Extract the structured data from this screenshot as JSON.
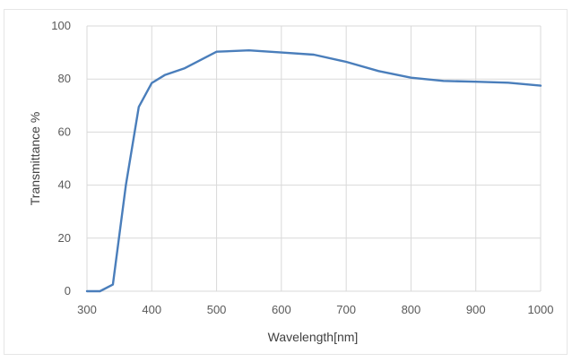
{
  "chart_data": {
    "type": "line",
    "title": "",
    "xlabel": "Wavelength[nm]",
    "ylabel": "Transmittance %",
    "xlim": [
      300,
      1000
    ],
    "ylim": [
      0,
      100
    ],
    "x_ticks": [
      300,
      400,
      500,
      600,
      700,
      800,
      900,
      1000
    ],
    "y_ticks": [
      0,
      20,
      40,
      60,
      80,
      100
    ],
    "grid": "both",
    "legend": "none",
    "series": [
      {
        "color": "#4a7ebb",
        "points": [
          [
            300,
            0
          ],
          [
            320,
            0
          ],
          [
            340,
            2.5
          ],
          [
            360,
            40
          ],
          [
            380,
            69.5
          ],
          [
            400,
            78.5
          ],
          [
            420,
            81.5
          ],
          [
            450,
            84
          ],
          [
            500,
            90.3
          ],
          [
            550,
            90.8
          ],
          [
            600,
            90
          ],
          [
            650,
            89.2
          ],
          [
            700,
            86.5
          ],
          [
            750,
            83
          ],
          [
            800,
            80.5
          ],
          [
            850,
            79.3
          ],
          [
            900,
            79
          ],
          [
            950,
            78.6
          ],
          [
            1000,
            77.5
          ]
        ]
      }
    ]
  }
}
